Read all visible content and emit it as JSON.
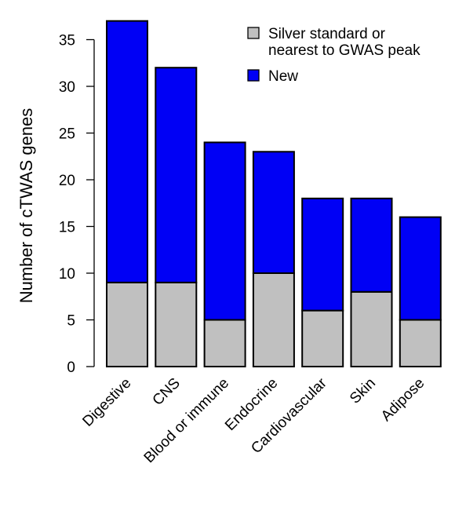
{
  "chart_data": {
    "type": "bar",
    "stacked": true,
    "ylabel": "Number of cTWAS genes",
    "ylim": [
      0,
      37
    ],
    "yticks": [
      0,
      5,
      10,
      15,
      20,
      25,
      30,
      35
    ],
    "categories": [
      "Digestive",
      "CNS",
      "Blood or immune",
      "Endocrine",
      "Cardiovascular",
      "Skin",
      "Adipose"
    ],
    "series": [
      {
        "name": "Silver standard or nearest to GWAS peak",
        "values": [
          9,
          9,
          5,
          10,
          6,
          8,
          5
        ],
        "color": "#c0c0c0"
      },
      {
        "name": "New",
        "values": [
          28,
          23,
          19,
          13,
          12,
          10,
          11
        ],
        "color": "#0000f5"
      }
    ],
    "legend": {
      "position": "top-right",
      "entries": [
        {
          "lines": [
            "Silver standard or",
            "nearest to GWAS peak"
          ],
          "color": "#c0c0c0"
        },
        {
          "lines": [
            "New"
          ],
          "color": "#0000f5"
        }
      ]
    },
    "grid": false
  }
}
